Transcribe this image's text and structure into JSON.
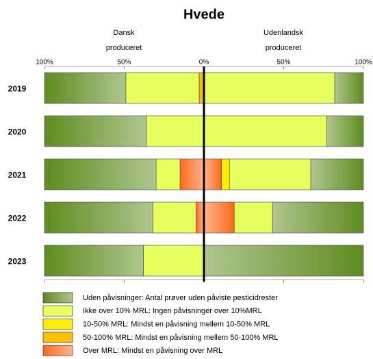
{
  "chart_data": {
    "type": "diverging-bar",
    "title": "Hvede",
    "left_label": [
      "Dansk",
      "produceret"
    ],
    "right_label": [
      "Udenlandsk",
      "produceret"
    ],
    "categories": [
      "2019",
      "2020",
      "2021",
      "2022",
      "2023"
    ],
    "xlim": [
      -100,
      100
    ],
    "xticks": [
      {
        "value": -100,
        "label": "100%"
      },
      {
        "value": -50,
        "label": "50%"
      },
      {
        "value": 0,
        "label": "0%"
      },
      {
        "value": 50,
        "label": "50%"
      },
      {
        "value": 100,
        "label": "100%"
      }
    ],
    "series": [
      {
        "name": "Uden påvisninger: Antal prøver uden påviste pesticidrester",
        "color": "#5e8c1f",
        "gradient": true,
        "dansk": [
          51,
          64,
          70,
          68,
          62
        ],
        "udenlandsk": [
          18,
          23,
          33,
          57,
          100
        ]
      },
      {
        "name": "Ikke over 10% MRL: Ingen påvisninger over 10%MRL",
        "color": "#e6ff5c",
        "dansk": [
          46,
          36,
          15,
          27,
          38
        ],
        "udenlandsk": [
          82,
          77,
          51,
          24,
          0
        ]
      },
      {
        "name": "10-50% MRL: Mindst en påvisning mellem 10-50% MRL",
        "color": "#ffee00",
        "dansk": [
          0,
          0,
          0,
          0,
          0
        ],
        "udenlandsk": [
          0,
          0,
          5,
          0,
          0
        ]
      },
      {
        "name": "50-100% MRL: Mindst en påvisning mellem 50-100% MRL",
        "color": "#ffc000",
        "dansk": [
          3,
          0,
          0,
          0,
          0
        ],
        "udenlandsk": [
          0,
          0,
          0,
          0,
          0
        ]
      },
      {
        "name": "Over MRL:  Mindst en påvisning over MRL",
        "color": "#ff6a1a",
        "gradient": true,
        "dansk": [
          0,
          0,
          15,
          5,
          0
        ],
        "udenlandsk": [
          0,
          0,
          11,
          19,
          0
        ]
      }
    ]
  }
}
